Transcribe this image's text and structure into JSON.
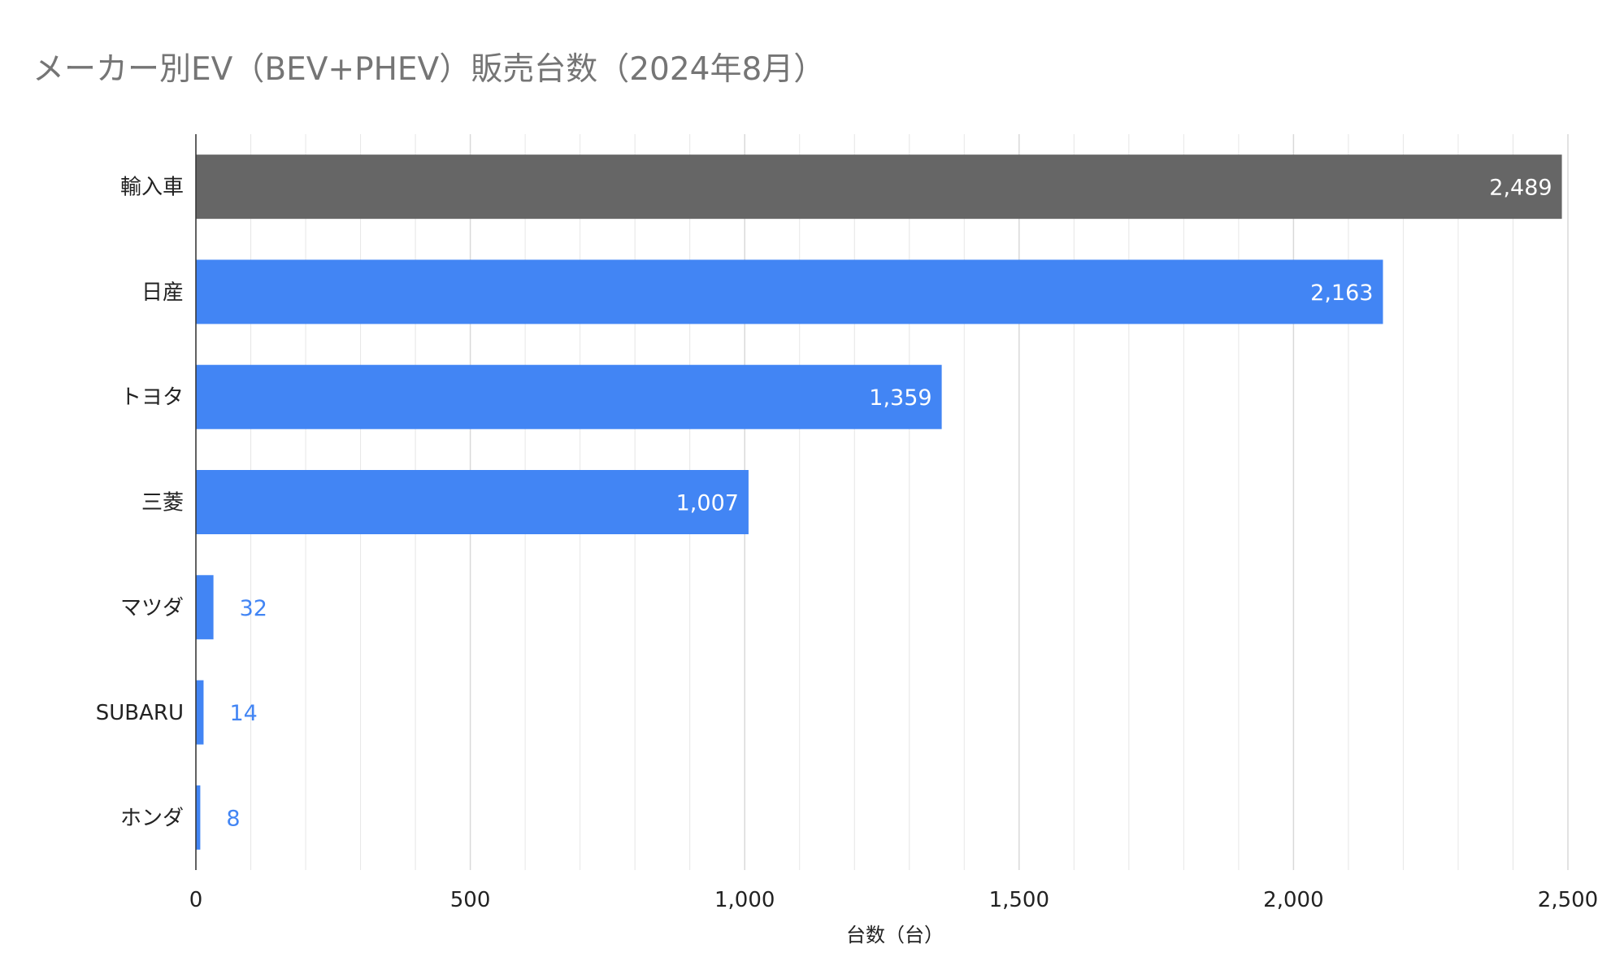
{
  "chart_data": {
    "type": "bar",
    "orientation": "horizontal",
    "title": "メーカー別EV（BEV+PHEV）販売台数（2024年8月）",
    "xlabel": "台数（台）",
    "ylabel": "",
    "categories": [
      "輸入車",
      "日産",
      "トヨタ",
      "三菱",
      "マツダ",
      "SUBARU",
      "ホンダ"
    ],
    "values": [
      2489,
      2163,
      1359,
      1007,
      32,
      14,
      8
    ],
    "value_labels": [
      "2,489",
      "2,163",
      "1,359",
      "1,007",
      "32",
      "14",
      "8"
    ],
    "xlim": [
      0,
      2500
    ],
    "ticks": [
      0,
      500,
      1000,
      1500,
      2000,
      2500
    ],
    "tick_labels": [
      "0",
      "500",
      "1,000",
      "1,500",
      "2,000",
      "2,500"
    ],
    "minor_gridline_step": 100,
    "grid": true,
    "legend": "none",
    "colors": {
      "highlight_bar": "#666666",
      "bar": "#4285f4",
      "label_inside": "#ffffff",
      "label_outside": "#4285f4",
      "title": "#757575",
      "gridline": "#e6e6e6",
      "axis": "#333333"
    }
  }
}
